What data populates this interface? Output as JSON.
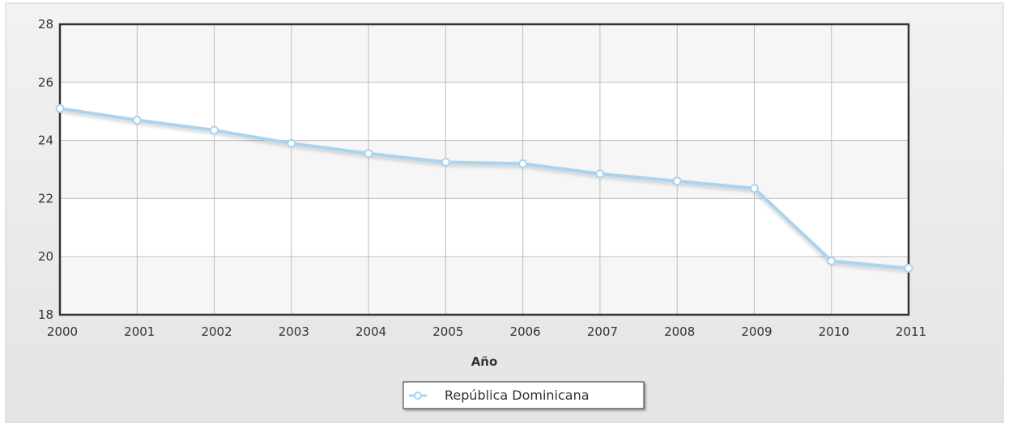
{
  "chart_data": {
    "type": "line",
    "title": "",
    "xlabel": "Año",
    "ylabel": "",
    "categories": [
      "2000",
      "2001",
      "2002",
      "2003",
      "2004",
      "2005",
      "2006",
      "2007",
      "2008",
      "2009",
      "2010",
      "2011"
    ],
    "yticks": [
      18,
      20,
      22,
      24,
      26,
      28
    ],
    "ylim": [
      18,
      28
    ],
    "grid": true,
    "legend_position": "bottom-center",
    "series": [
      {
        "name": "República Dominicana",
        "color": "#a8d4ee",
        "values": [
          25.1,
          24.7,
          24.35,
          23.9,
          23.55,
          23.25,
          23.2,
          22.85,
          22.6,
          22.35,
          19.85,
          19.6
        ]
      }
    ]
  }
}
